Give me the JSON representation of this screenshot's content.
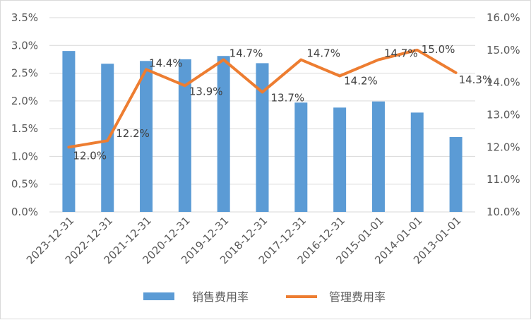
{
  "chart_data": {
    "type": "bar+line",
    "categories": [
      "2023-12-31",
      "2022-12-31",
      "2021-12-31",
      "2020-12-31",
      "2019-12-31",
      "2018-12-31",
      "2017-12-31",
      "2016-12-31",
      "2015-01-01",
      "2014-01-01",
      "2013-01-01"
    ],
    "series": [
      {
        "name": "销售费用率",
        "type": "bar",
        "axis": "left",
        "color": "#5b9bd5",
        "values": [
          2.9,
          2.67,
          2.72,
          2.75,
          2.81,
          2.68,
          1.97,
          1.88,
          1.99,
          1.79,
          1.35
        ]
      },
      {
        "name": "管理费用率",
        "type": "line",
        "axis": "right",
        "color": "#ed7d31",
        "values": [
          12.0,
          12.2,
          14.4,
          13.9,
          14.7,
          13.7,
          14.7,
          14.2,
          14.7,
          15.0,
          14.3
        ],
        "data_labels": [
          "12.0%",
          "12.2%",
          "14.4%",
          "13.9%",
          "14.7%",
          "13.7%",
          "14.7%",
          "14.2%",
          "14.7%",
          "15.0%",
          "14.3%"
        ]
      }
    ],
    "y_left": {
      "ylim": [
        0,
        3.5
      ],
      "ticks": [
        "0.0%",
        "0.5%",
        "1.0%",
        "1.5%",
        "2.0%",
        "2.5%",
        "3.0%",
        "3.5%"
      ]
    },
    "y_right": {
      "ylim": [
        10,
        16
      ],
      "ticks": [
        "10.0%",
        "11.0%",
        "12.0%",
        "13.0%",
        "14.0%",
        "15.0%",
        "16.0%"
      ]
    },
    "grid": true,
    "legend_position": "bottom"
  }
}
